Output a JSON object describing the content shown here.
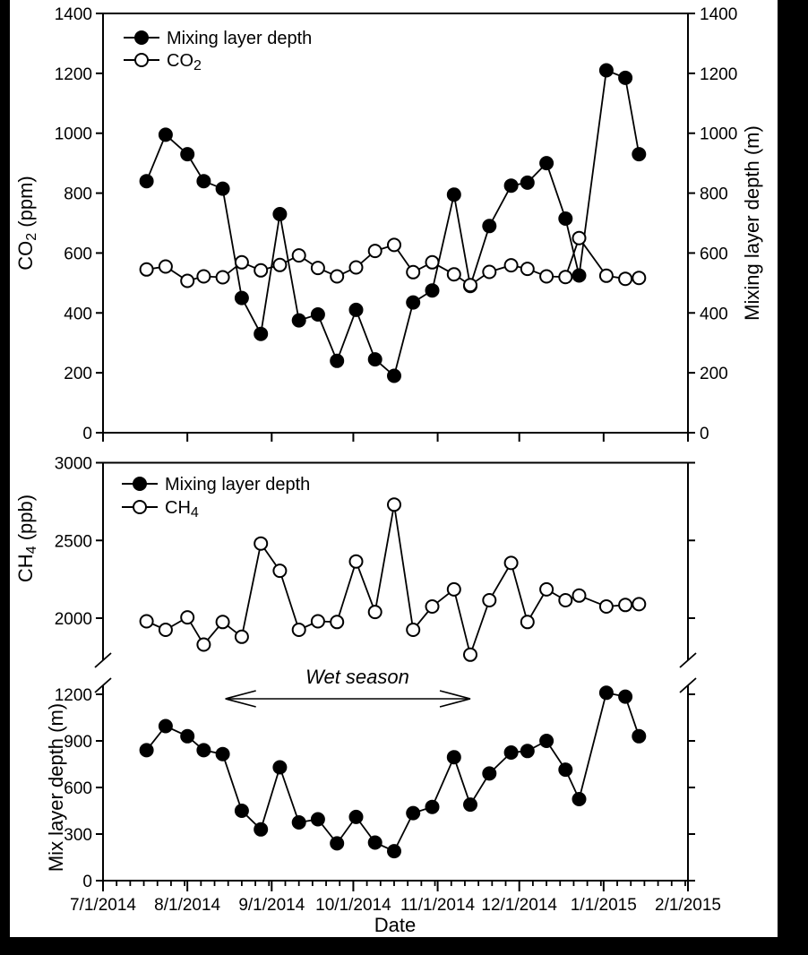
{
  "figure": {
    "background": "#000000",
    "paper": "#ffffff",
    "ink": "#000000"
  },
  "x_axis": {
    "title": "Date",
    "range": [
      "7/1/2014",
      "2/1/2015"
    ],
    "major_tick_labels": [
      "7/1/2014",
      "8/1/2014",
      "9/1/2014",
      "10/1/2014",
      "11/1/2014",
      "12/1/2014",
      "1/1/2015",
      "2/1/2015"
    ],
    "minor_tick_days_of_month": [
      6,
      11,
      16,
      21,
      26,
      31
    ]
  },
  "chart_data": [
    {
      "id": "co2-and-mixing-layer-depth",
      "type": "line",
      "x": [
        "7/17/2014",
        "7/24/2014",
        "8/1/2014",
        "8/7/2014",
        "8/14/2014",
        "8/21/2014",
        "8/28/2014",
        "9/4/2014",
        "9/11/2014",
        "9/18/2014",
        "9/25/2014",
        "10/2/2014",
        "10/9/2014",
        "10/16/2014",
        "10/23/2014",
        "10/30/2014",
        "11/7/2014",
        "11/13/2014",
        "11/20/2014",
        "11/28/2014",
        "12/4/2014",
        "12/11/2014",
        "12/18/2014",
        "12/23/2014",
        "1/2/2015",
        "1/9/2015",
        "1/14/2015"
      ],
      "series": [
        {
          "name": "Mixing layer depth",
          "label": {
            "text": "Mixing layer depth",
            "sub": ""
          },
          "marker": "filled-circle",
          "y_axis": "right",
          "values": [
            840,
            995,
            930,
            840,
            815,
            450,
            330,
            730,
            375,
            395,
            240,
            410,
            245,
            190,
            435,
            475,
            795,
            490,
            690,
            825,
            835,
            900,
            715,
            525,
            1210,
            1185,
            930
          ]
        },
        {
          "name": "CO2",
          "label": {
            "text": "CO",
            "sub": "2"
          },
          "marker": "open-circle",
          "y_axis": "left",
          "values": [
            545,
            555,
            507,
            522,
            519,
            569,
            542,
            560,
            592,
            550,
            522,
            552,
            607,
            627,
            536,
            569,
            529,
            493,
            537,
            559,
            547,
            522,
            520,
            650,
            524,
            514,
            517
          ]
        }
      ],
      "y_left": {
        "label": {
          "text": "CO",
          "sub": "2",
          "post": " (ppm)"
        },
        "ticks": [
          0,
          200,
          400,
          600,
          800,
          1000,
          1200,
          1400
        ],
        "range": [
          0,
          1400
        ]
      },
      "y_right": {
        "label": {
          "text": "Mixing layer depth (m)"
        },
        "ticks": [
          0,
          200,
          400,
          600,
          800,
          1000,
          1200,
          1400
        ],
        "range": [
          0,
          1400
        ]
      },
      "legend_position": "top-left",
      "grid": false
    },
    {
      "id": "ch4-and-mix-layer-depth-broken-axis",
      "type": "line-broken-y",
      "x": [
        "7/17/2014",
        "7/24/2014",
        "8/1/2014",
        "8/7/2014",
        "8/14/2014",
        "8/21/2014",
        "8/28/2014",
        "9/4/2014",
        "9/11/2014",
        "9/18/2014",
        "9/25/2014",
        "10/2/2014",
        "10/9/2014",
        "10/16/2014",
        "10/23/2014",
        "10/30/2014",
        "11/7/2014",
        "11/13/2014",
        "11/20/2014",
        "11/28/2014",
        "12/4/2014",
        "12/11/2014",
        "12/18/2014",
        "12/23/2014",
        "1/2/2015",
        "1/9/2015",
        "1/14/2015"
      ],
      "series": [
        {
          "name": "Mixing layer depth",
          "label": {
            "text": "Mixing layer depth",
            "sub": ""
          },
          "marker": "filled-circle",
          "y_axis": "lower",
          "values": [
            840,
            995,
            930,
            840,
            815,
            450,
            330,
            730,
            375,
            395,
            240,
            410,
            245,
            190,
            435,
            475,
            795,
            490,
            690,
            825,
            835,
            900,
            715,
            525,
            1210,
            1185,
            930
          ]
        },
        {
          "name": "CH4",
          "label": {
            "text": "CH",
            "sub": "4"
          },
          "marker": "open-circle",
          "y_axis": "upper",
          "values": [
            1980,
            1925,
            2005,
            1830,
            1975,
            1880,
            2480,
            2305,
            1925,
            1980,
            1975,
            2365,
            2040,
            2730,
            1925,
            2075,
            2185,
            1765,
            2115,
            2355,
            1975,
            2185,
            2115,
            2145,
            2075,
            2085,
            2090
          ]
        }
      ],
      "y_upper": {
        "label": {
          "text": "CH",
          "sub": "4",
          "post": " (ppb)"
        },
        "ticks": [
          2000,
          2500,
          3000
        ],
        "range": [
          1760,
          3000
        ]
      },
      "y_lower": {
        "label": {
          "text": "Mix layer depth (m)"
        },
        "ticks": [
          0,
          300,
          600,
          900,
          1200
        ],
        "range": [
          0,
          1290
        ]
      },
      "annotation": {
        "text": "Wet season",
        "from": "8/15/2014",
        "to": "11/13/2014"
      },
      "legend_position": "top-left",
      "grid": false
    }
  ]
}
